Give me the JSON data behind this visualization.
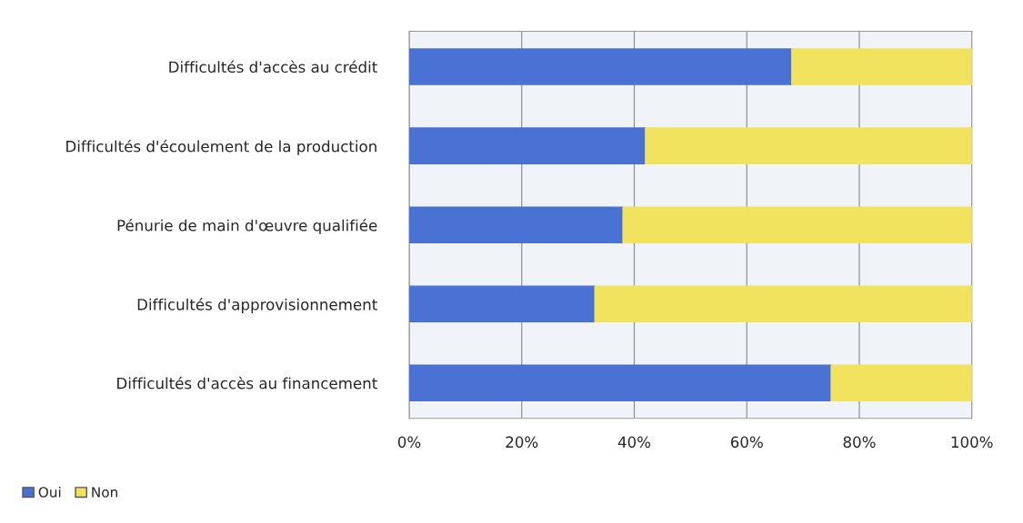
{
  "chart_data": {
    "type": "bar",
    "orientation": "horizontal",
    "stacked": true,
    "categories": [
      "Difficultés d'accès au crédit",
      "Difficultés d'écoulement de la production",
      "Pénurie de main d'œuvre qualifiée",
      "Difficultés d'approvisionnement",
      "Difficultés d'accès au financement"
    ],
    "series": [
      {
        "name": "Oui",
        "color": "#4a72d4",
        "values": [
          68,
          42,
          38,
          33,
          75
        ]
      },
      {
        "name": "Non",
        "color": "#f2e35e",
        "values": [
          32,
          58,
          62,
          67,
          25
        ]
      }
    ],
    "xlim": [
      0,
      100
    ],
    "xticks": [
      {
        "value": 0,
        "label": "0%"
      },
      {
        "value": 20,
        "label": "20%"
      },
      {
        "value": 40,
        "label": "40%"
      },
      {
        "value": 60,
        "label": "60%"
      },
      {
        "value": 80,
        "label": "80%"
      },
      {
        "value": 100,
        "label": "100%"
      }
    ],
    "grid": "x",
    "legend": "bottom left"
  }
}
